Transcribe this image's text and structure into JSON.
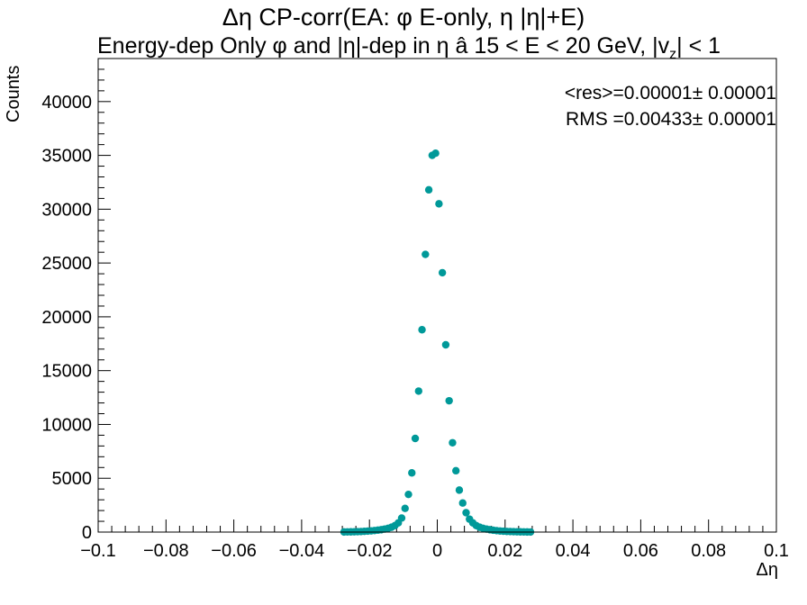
{
  "chart_data": {
    "type": "scatter",
    "title": "Δη CP-corr(EA: φ E-only, η |η|+E)",
    "subtitle": "Energy-dep Only φ and |η|-dep in η   â   15 < E < 20 GeV, |v",
    "subtitle_subscript": "z",
    "subtitle_tail": "| < 1",
    "xlabel": "Δη",
    "ylabel": "Counts",
    "xlim": [
      -0.1,
      0.1
    ],
    "ylim": [
      0,
      44000
    ],
    "x_ticks": [
      "−0.1",
      "−0.08",
      "−0.06",
      "−0.04",
      "−0.02",
      "0",
      "0.02",
      "0.04",
      "0.06",
      "0.08",
      "0.1"
    ],
    "y_ticks": [
      "0",
      "5000",
      "10000",
      "15000",
      "20000",
      "25000",
      "30000",
      "35000",
      "40000"
    ],
    "stats": {
      "mean": "<res>=0.00001",
      "mean_err": "± 0.00001",
      "rms": "RMS =0.00433",
      "rms_err": "± 0.00001"
    },
    "marker_color": "#009999",
    "series": [
      {
        "x": [
          -0.0275,
          -0.0265,
          -0.0255,
          -0.0245,
          -0.0235,
          -0.0225,
          -0.0215,
          -0.0205,
          -0.0195,
          -0.0185,
          -0.0175,
          -0.0165,
          -0.0155,
          -0.0145,
          -0.0135,
          -0.0125,
          -0.0115,
          -0.0105,
          -0.0095,
          -0.0085,
          -0.0075,
          -0.0065,
          -0.0055,
          -0.0045,
          -0.0035,
          -0.0025,
          -0.0015,
          -0.0005,
          0.0005,
          0.0015,
          0.0025,
          0.0035,
          0.0045,
          0.0055,
          0.0065,
          0.0075,
          0.0085,
          0.0095,
          0.0105,
          0.0115,
          0.0125,
          0.0135,
          0.0145,
          0.0155,
          0.0165,
          0.0175,
          0.0185,
          0.0195,
          0.0205,
          0.0215,
          0.0225,
          0.0235,
          0.0245,
          0.0255,
          0.0265,
          0.0275
        ],
        "y": [
          10,
          15,
          20,
          30,
          40,
          50,
          70,
          90,
          110,
          140,
          180,
          220,
          280,
          350,
          450,
          600,
          850,
          1300,
          2200,
          3500,
          5500,
          8700,
          13100,
          18800,
          25800,
          31800,
          35000,
          35200,
          30500,
          24100,
          17400,
          12200,
          8300,
          5700,
          3900,
          2700,
          1800,
          1200,
          850,
          600,
          450,
          350,
          280,
          220,
          170,
          130,
          100,
          80,
          60,
          45,
          35,
          25,
          20,
          15,
          10,
          8
        ]
      }
    ]
  }
}
